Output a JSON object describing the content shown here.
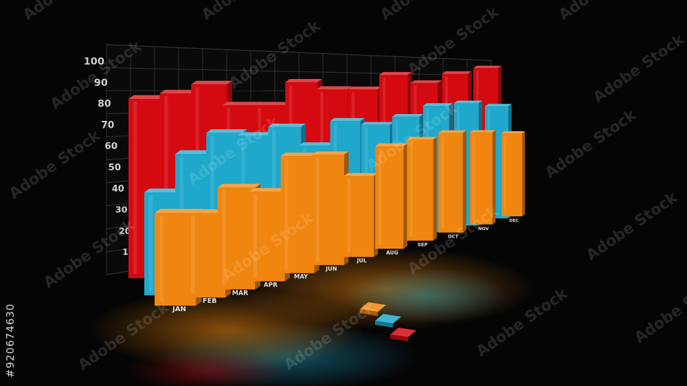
{
  "chart_data": {
    "type": "bar",
    "style": "3d-perspective",
    "categories": [
      "JAN",
      "FEB",
      "MAR",
      "APR",
      "MAY",
      "JUN",
      "JUL",
      "AUG",
      "SEP",
      "OCT",
      "NOV",
      "DEC"
    ],
    "series": [
      {
        "values": [
          90,
          92,
          96,
          84,
          83,
          95,
          90,
          89,
          97,
          91,
          96,
          99
        ]
      },
      {
        "values": [
          50,
          67,
          76,
          73,
          76,
          64,
          76,
          72,
          75,
          80,
          80,
          76
        ]
      },
      {
        "values": [
          45,
          42,
          52,
          47,
          63,
          61,
          46,
          60,
          61,
          62,
          59,
          55
        ]
      }
    ],
    "yticks": [
      10,
      20,
      30,
      40,
      50,
      60,
      70,
      80,
      90,
      100
    ],
    "ylim": [
      0,
      100
    ],
    "grid": true,
    "legend": "bottom-center",
    "colors": [
      "#d40a10",
      "#1fa8cc",
      "#f0860f"
    ],
    "background": "#050505"
  },
  "watermark": "Adobe Stock",
  "stock_id": "#920674630"
}
